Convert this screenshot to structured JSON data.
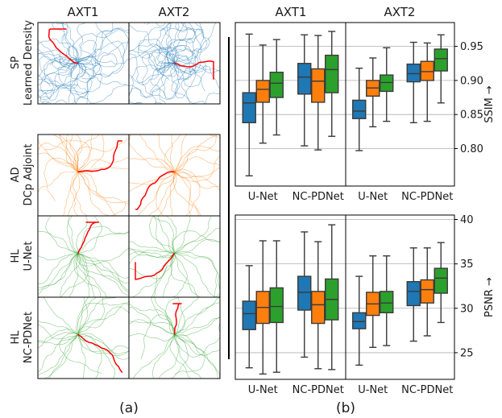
{
  "panel_a": {
    "caption": "(a)",
    "col_titles": [
      "AXT1",
      "AXT2"
    ],
    "rows": [
      {
        "label_line1": "SP",
        "label_line2": "Learned Density",
        "color": "#1f77b4",
        "seed": 11
      },
      {
        "label_line1": "AD",
        "label_line2": "DCp Adjoint",
        "color": "#ff7f0e",
        "seed": 23
      },
      {
        "label_line1": "HL",
        "label_line2": "U-Net",
        "color": "#2ca02c",
        "seed": 37
      },
      {
        "label_line1": "HL",
        "label_line2": "NC-PDNet",
        "color": "#2ca02c",
        "seed": 53
      }
    ],
    "highlight_color": "#ff0000"
  },
  "panel_b": {
    "caption": "(b)",
    "col_titles": [
      "AXT1",
      "AXT2"
    ],
    "colors": {
      "series1": "#1f77b4",
      "series2": "#ff7f0e",
      "series3": "#2ca02c"
    }
  },
  "chart_data": [
    {
      "type": "box",
      "ylabel": "SSIM →",
      "ylim": [
        0.745,
        0.985
      ],
      "yticks": [
        "0.80",
        "0.85",
        "0.90",
        "0.95"
      ],
      "ytick_values": [
        0.8,
        0.85,
        0.9,
        0.95
      ],
      "grid": true,
      "panels": [
        {
          "title": "AXT1",
          "categories": [
            "U-Net",
            "NC-PDNet"
          ],
          "boxes": [
            [
              [
                0.76,
                0.838,
                0.867,
                0.882,
                0.968
              ],
              [
                0.808,
                0.868,
                0.887,
                0.9,
                0.952
              ],
              [
                0.82,
                0.875,
                0.896,
                0.912,
                0.96
              ]
            ],
            [
              [
                0.804,
                0.88,
                0.905,
                0.925,
                0.967
              ],
              [
                0.798,
                0.868,
                0.899,
                0.917,
                0.966
              ],
              [
                0.818,
                0.882,
                0.916,
                0.937,
                0.972
              ]
            ]
          ]
        },
        {
          "title": "AXT2",
          "categories": [
            "U-Net",
            "NC-PDNet"
          ],
          "boxes": [
            [
              [
                0.797,
                0.844,
                0.855,
                0.871,
                0.918
              ],
              [
                0.832,
                0.877,
                0.889,
                0.9,
                0.933
              ],
              [
                0.84,
                0.884,
                0.897,
                0.908,
                0.948
              ]
            ],
            [
              [
                0.838,
                0.898,
                0.91,
                0.924,
                0.956
              ],
              [
                0.84,
                0.9,
                0.913,
                0.928,
                0.955
              ],
              [
                0.867,
                0.914,
                0.932,
                0.946,
                0.967
              ]
            ]
          ]
        }
      ]
    },
    {
      "type": "box",
      "ylabel": "PSNR →",
      "ylim": [
        22.0,
        40.5
      ],
      "yticks": [
        "25",
        "30",
        "35",
        "40"
      ],
      "ytick_values": [
        25,
        30,
        35,
        40
      ],
      "grid": true,
      "panels": [
        {
          "title": "AXT1",
          "categories": [
            "U-Net",
            "NC-PDNet"
          ],
          "boxes": [
            [
              [
                23.3,
                27.6,
                29.4,
                30.8,
                34.8
              ],
              [
                22.6,
                28.3,
                30.1,
                31.9,
                37.6
              ],
              [
                22.8,
                28.4,
                30.2,
                32.3,
                37.6
              ]
            ],
            [
              [
                24.5,
                29.8,
                31.8,
                33.6,
                38.6
              ],
              [
                23.2,
                28.3,
                30.4,
                31.9,
                37.5
              ],
              [
                23.1,
                28.7,
                31.0,
                33.3,
                39.4
              ]
            ]
          ]
        },
        {
          "title": "AXT2",
          "categories": [
            "U-Net",
            "NC-PDNet"
          ],
          "boxes": [
            [
              [
                23.6,
                27.7,
                28.5,
                29.5,
                33.6
              ],
              [
                25.6,
                29.2,
                30.5,
                31.8,
                35.9
              ],
              [
                25.8,
                29.5,
                30.6,
                31.9,
                35.9
              ]
            ],
            [
              [
                26.3,
                30.3,
                31.9,
                33.0,
                36.8
              ],
              [
                26.9,
                30.6,
                32.1,
                33.2,
                36.8
              ],
              [
                28.4,
                31.7,
                33.4,
                34.5,
                37.4
              ]
            ]
          ]
        }
      ]
    }
  ]
}
